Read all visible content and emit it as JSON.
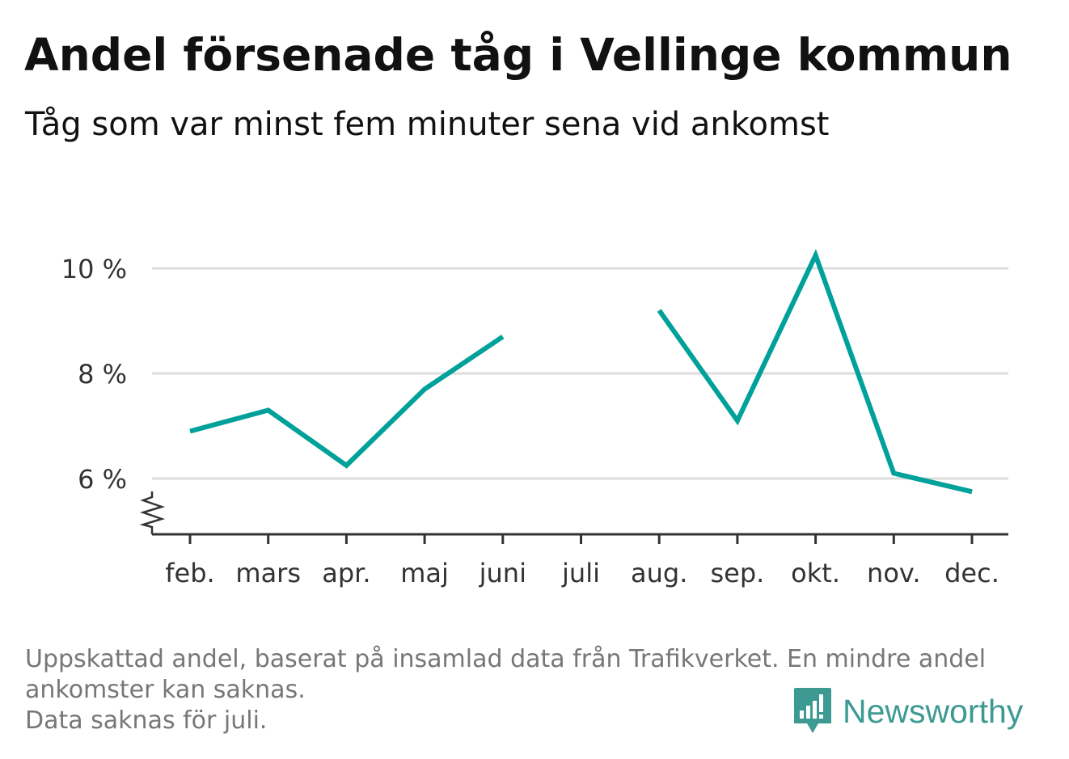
{
  "title": "Andel försenade tåg i Vellinge kommun",
  "subtitle": "Tåg som var minst fem minuter sena vid ankomst",
  "footnote": {
    "line1": "Uppskattad andel, baserat på insamlad data från Trafikverket. En mindre andel",
    "line2": "ankomster kan saknas.",
    "line3": "Data saknas för juli."
  },
  "brand": {
    "name": "Newsworthy",
    "icon": "newsworthy-bar-chart-icon",
    "color": "#3d9a93"
  },
  "chart_data": {
    "type": "line",
    "categories": [
      "feb.",
      "mars",
      "apr.",
      "maj",
      "juni",
      "juli",
      "aug.",
      "sep.",
      "okt.",
      "nov.",
      "dec."
    ],
    "series": [
      {
        "values": [
          6.9,
          7.3,
          6.25,
          7.7,
          8.7,
          null,
          9.2,
          7.1,
          10.25,
          6.1,
          5.75
        ],
        "color": "#00a19a"
      }
    ],
    "y_ticks": [
      6,
      8,
      10
    ],
    "y_tick_labels": [
      "6 %",
      "8 %",
      "10 %"
    ],
    "ylim": [
      5,
      10.5
    ],
    "y_axis_break": true,
    "grid": true,
    "grid_color": "#dddddd",
    "xlabel": "",
    "ylabel": ""
  }
}
